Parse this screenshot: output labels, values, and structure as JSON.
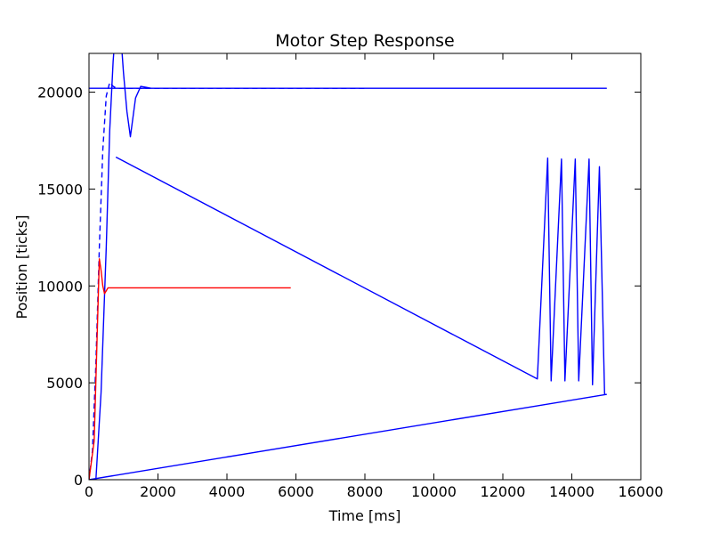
{
  "chart_data": {
    "type": "line",
    "title": "Motor Step Response",
    "xlabel": "Time [ms]",
    "ylabel": "Position [ticks]",
    "xlim": [
      0,
      16000
    ],
    "ylim": [
      0,
      22000
    ],
    "xticks": [
      0,
      2000,
      4000,
      6000,
      8000,
      10000,
      12000,
      14000,
      16000
    ],
    "yticks": [
      0,
      5000,
      10000,
      15000,
      20000
    ],
    "grid": false,
    "legend": "none",
    "series": [
      {
        "color": "#0000ff",
        "style": "dashed",
        "x": [
          0,
          100,
          200,
          300,
          400,
          500,
          600,
          700,
          800,
          900,
          1000,
          1200,
          1400,
          1600,
          1800,
          2000,
          4000,
          6000,
          8000
        ],
        "y": [
          0,
          1500,
          6000,
          12000,
          17000,
          19800,
          20500,
          20300,
          20200,
          20200,
          20200,
          20200,
          20200,
          20200,
          20200,
          20200,
          20200,
          20200,
          20200
        ]
      },
      {
        "color": "#0000ff",
        "style": "solid",
        "x": [
          0,
          200,
          350,
          500,
          600,
          700,
          780,
          900,
          1000,
          1100,
          1200,
          1350,
          1500,
          1650,
          1800,
          2000,
          4000,
          6000,
          8000,
          10000,
          11600,
          12100,
          12700,
          13000,
          13150,
          13250,
          13350,
          13500,
          13650,
          13750,
          13900,
          14050,
          14150,
          14300,
          14450,
          14600,
          14750,
          14850,
          15000,
          0
        ],
        "y": [
          0,
          0,
          4500,
          12000,
          18000,
          21600,
          23500,
          23500,
          21000,
          19000,
          17700,
          19700,
          20300,
          20250,
          20200,
          20200,
          20200,
          20200,
          20200,
          20200,
          20200,
          20200,
          20200,
          20200,
          20200,
          20200,
          20200,
          20200,
          20200,
          20200,
          20200,
          20200,
          20200,
          20200,
          20200,
          20200,
          20200,
          20200,
          20200,
          20200
        ]
      },
      {
        "color": "#0000ff",
        "style": "solid",
        "x": [
          780,
          13000,
          13300,
          13400,
          13700,
          13800,
          14100,
          14200,
          14500,
          14600,
          14800,
          14950,
          15000,
          0
        ],
        "y": [
          16650,
          5200,
          16600,
          5100,
          16550,
          5100,
          16550,
          5100,
          16550,
          4900,
          16150,
          4400,
          4400,
          0
        ]
      },
      {
        "color": "#ff0000",
        "style": "solid",
        "x": [
          0,
          150,
          300,
          350,
          400,
          450,
          500,
          550,
          600,
          700,
          800,
          1000,
          2000,
          3000,
          4000,
          5000,
          5850
        ],
        "y": [
          0,
          2000,
          11400,
          10800,
          10000,
          9600,
          9750,
          9900,
          9900,
          9900,
          9900,
          9900,
          9900,
          9900,
          9900,
          9900,
          9900
        ]
      }
    ]
  }
}
